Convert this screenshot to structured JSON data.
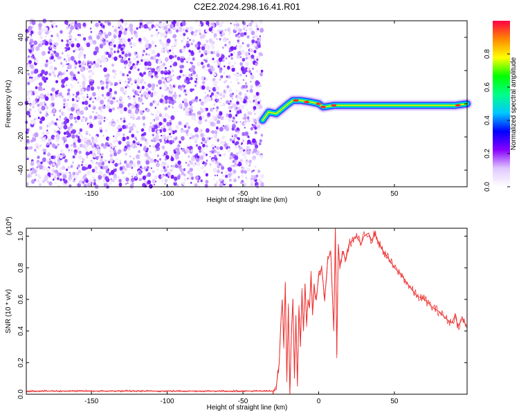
{
  "chart_data": [
    {
      "type": "heatmap",
      "title": "C2E2.2024.298.16.41.R01",
      "xlabel": "Height of straight line (km)",
      "ylabel": "Frequency (Hz)",
      "xlim": [
        -193,
        98
      ],
      "ylim": [
        -50,
        50
      ],
      "x_ticks": [
        -150,
        -100,
        -50,
        0,
        50
      ],
      "x_tick_labels": [
        "-150",
        "-100",
        "-50",
        "0",
        "50"
      ],
      "y_ticks": [
        -40,
        -20,
        0,
        20,
        40
      ],
      "y_tick_labels": [
        "-40",
        "-20",
        "0",
        "20",
        "40"
      ],
      "noise_region_x": [
        -193,
        -37
      ],
      "ridge": [
        {
          "x": -37,
          "y": -10
        },
        {
          "x": -33,
          "y": -5
        },
        {
          "x": -28,
          "y": -6
        },
        {
          "x": -24,
          "y": -3
        },
        {
          "x": -20,
          "y": 0
        },
        {
          "x": -17,
          "y": 2
        },
        {
          "x": -12,
          "y": 2
        },
        {
          "x": -5,
          "y": 1
        },
        {
          "x": 0,
          "y": 0
        },
        {
          "x": 3,
          "y": -2
        },
        {
          "x": 10,
          "y": -1
        },
        {
          "x": 20,
          "y": -1
        },
        {
          "x": 30,
          "y": -1
        },
        {
          "x": 50,
          "y": -1
        },
        {
          "x": 70,
          "y": -1
        },
        {
          "x": 90,
          "y": -1
        },
        {
          "x": 98,
          "y": 0
        }
      ],
      "colorbar": {
        "label": "Normalized spectral amplitude",
        "range": [
          0,
          1
        ],
        "ticks": [
          0,
          0.2,
          0.4,
          0.6,
          0.8
        ],
        "tick_labels": [
          "0.0",
          "0.2",
          "0.4",
          "0.6",
          "0.8"
        ],
        "colors": [
          "#ffffff",
          "#e0c8ff",
          "#8800ff",
          "#0000ff",
          "#00c8ff",
          "#00ff88",
          "#00ff00",
          "#ffff00",
          "#ff8800",
          "#ff0044"
        ]
      }
    },
    {
      "type": "line",
      "xlabel": "Height of straight line (km)",
      "ylabel": "SNR (10 * v/v)",
      "y_multiplier": "(x10",
      "y_multiplier_exp": "4",
      "y_multiplier_close": ")",
      "xlim": [
        -193,
        98
      ],
      "ylim": [
        0,
        1.05
      ],
      "x_ticks": [
        -150,
        -100,
        -50,
        0,
        50
      ],
      "x_tick_labels": [
        "-150",
        "-100",
        "-50",
        "0",
        "50"
      ],
      "y_ticks": [
        0,
        0.2,
        0.4,
        0.6,
        0.8,
        1.0
      ],
      "y_tick_labels": [
        "0.0",
        "0.2",
        "0.4",
        "0.6",
        "0.8",
        "1.0"
      ],
      "series": [
        {
          "name": "SNR",
          "color": "#ee3333",
          "x": [
            -193,
            -150,
            -100,
            -60,
            -40,
            -30,
            -28,
            -26,
            -25,
            -24,
            -23,
            -22,
            -21,
            -20,
            -19,
            -18,
            -17,
            -16,
            -15,
            -14,
            -13,
            -12,
            -11,
            -10,
            -9,
            -8,
            -7,
            -6,
            -5,
            -4,
            -3,
            -2,
            -1,
            0,
            2,
            4,
            6,
            8,
            10,
            11,
            12,
            13,
            14,
            16,
            18,
            20,
            22,
            25,
            28,
            30,
            33,
            35,
            37,
            40,
            43,
            46,
            50,
            55,
            60,
            65,
            70,
            75,
            80,
            85,
            88,
            90,
            92,
            95,
            98
          ],
          "y": [
            0.02,
            0.02,
            0.02,
            0.02,
            0.02,
            0.02,
            0.05,
            0.2,
            0.45,
            0.6,
            0.3,
            0.7,
            0.1,
            0.55,
            0.0,
            0.4,
            0.6,
            0.1,
            0.5,
            0.05,
            0.55,
            0.3,
            0.65,
            0.4,
            0.7,
            0.45,
            0.6,
            0.55,
            0.75,
            0.5,
            0.7,
            0.6,
            0.65,
            0.75,
            0.8,
            0.6,
            0.85,
            0.9,
            0.4,
            1.05,
            0.25,
            0.95,
            0.8,
            0.9,
            0.85,
            0.95,
            0.97,
            1.0,
            0.95,
            1.0,
            1.02,
            0.97,
            1.02,
            0.95,
            0.9,
            0.86,
            0.8,
            0.75,
            0.68,
            0.62,
            0.6,
            0.55,
            0.52,
            0.47,
            0.45,
            0.5,
            0.43,
            0.48,
            0.42
          ]
        }
      ]
    }
  ]
}
